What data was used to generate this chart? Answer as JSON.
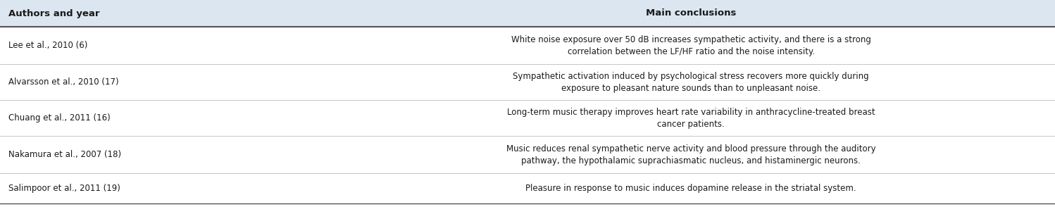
{
  "header_bg": "#dce6f1",
  "body_bg": "#ffffff",
  "col1_header": "Authors and year",
  "col2_header": "Main conclusions",
  "col_split": 0.31,
  "header_fontsize": 9.5,
  "body_fontsize": 8.5,
  "text_color": "#1a1a1a",
  "header_line_color": "#555555",
  "sep_line_color": "#bbbbbb",
  "bottom_line_color": "#888888",
  "rows": [
    {
      "author": "Lee et al., 2010 (6)",
      "conclusion": "White noise exposure over 50 dB increases sympathetic activity, and there is a strong\ncorrelation between the LF/HF ratio and the noise intensity."
    },
    {
      "author": "Alvarsson et al., 2010 (17)",
      "conclusion": "Sympathetic activation induced by psychological stress recovers more quickly during\nexposure to pleasant nature sounds than to unpleasant noise."
    },
    {
      "author": "Chuang et al., 2011 (16)",
      "conclusion": "Long-term music therapy improves heart rate variability in anthracycline-treated breast\ncancer patients."
    },
    {
      "author": "Nakamura et al., 2007 (18)",
      "conclusion": "Music reduces renal sympathetic nerve activity and blood pressure through the auditory\npathway, the hypothalamic suprachiasmatic nucleus, and histaminergic neurons."
    },
    {
      "author": "Salimpoor et al., 2011 (19)",
      "conclusion": "Pleasure in response to music induces dopamine release in the striatal system."
    }
  ]
}
